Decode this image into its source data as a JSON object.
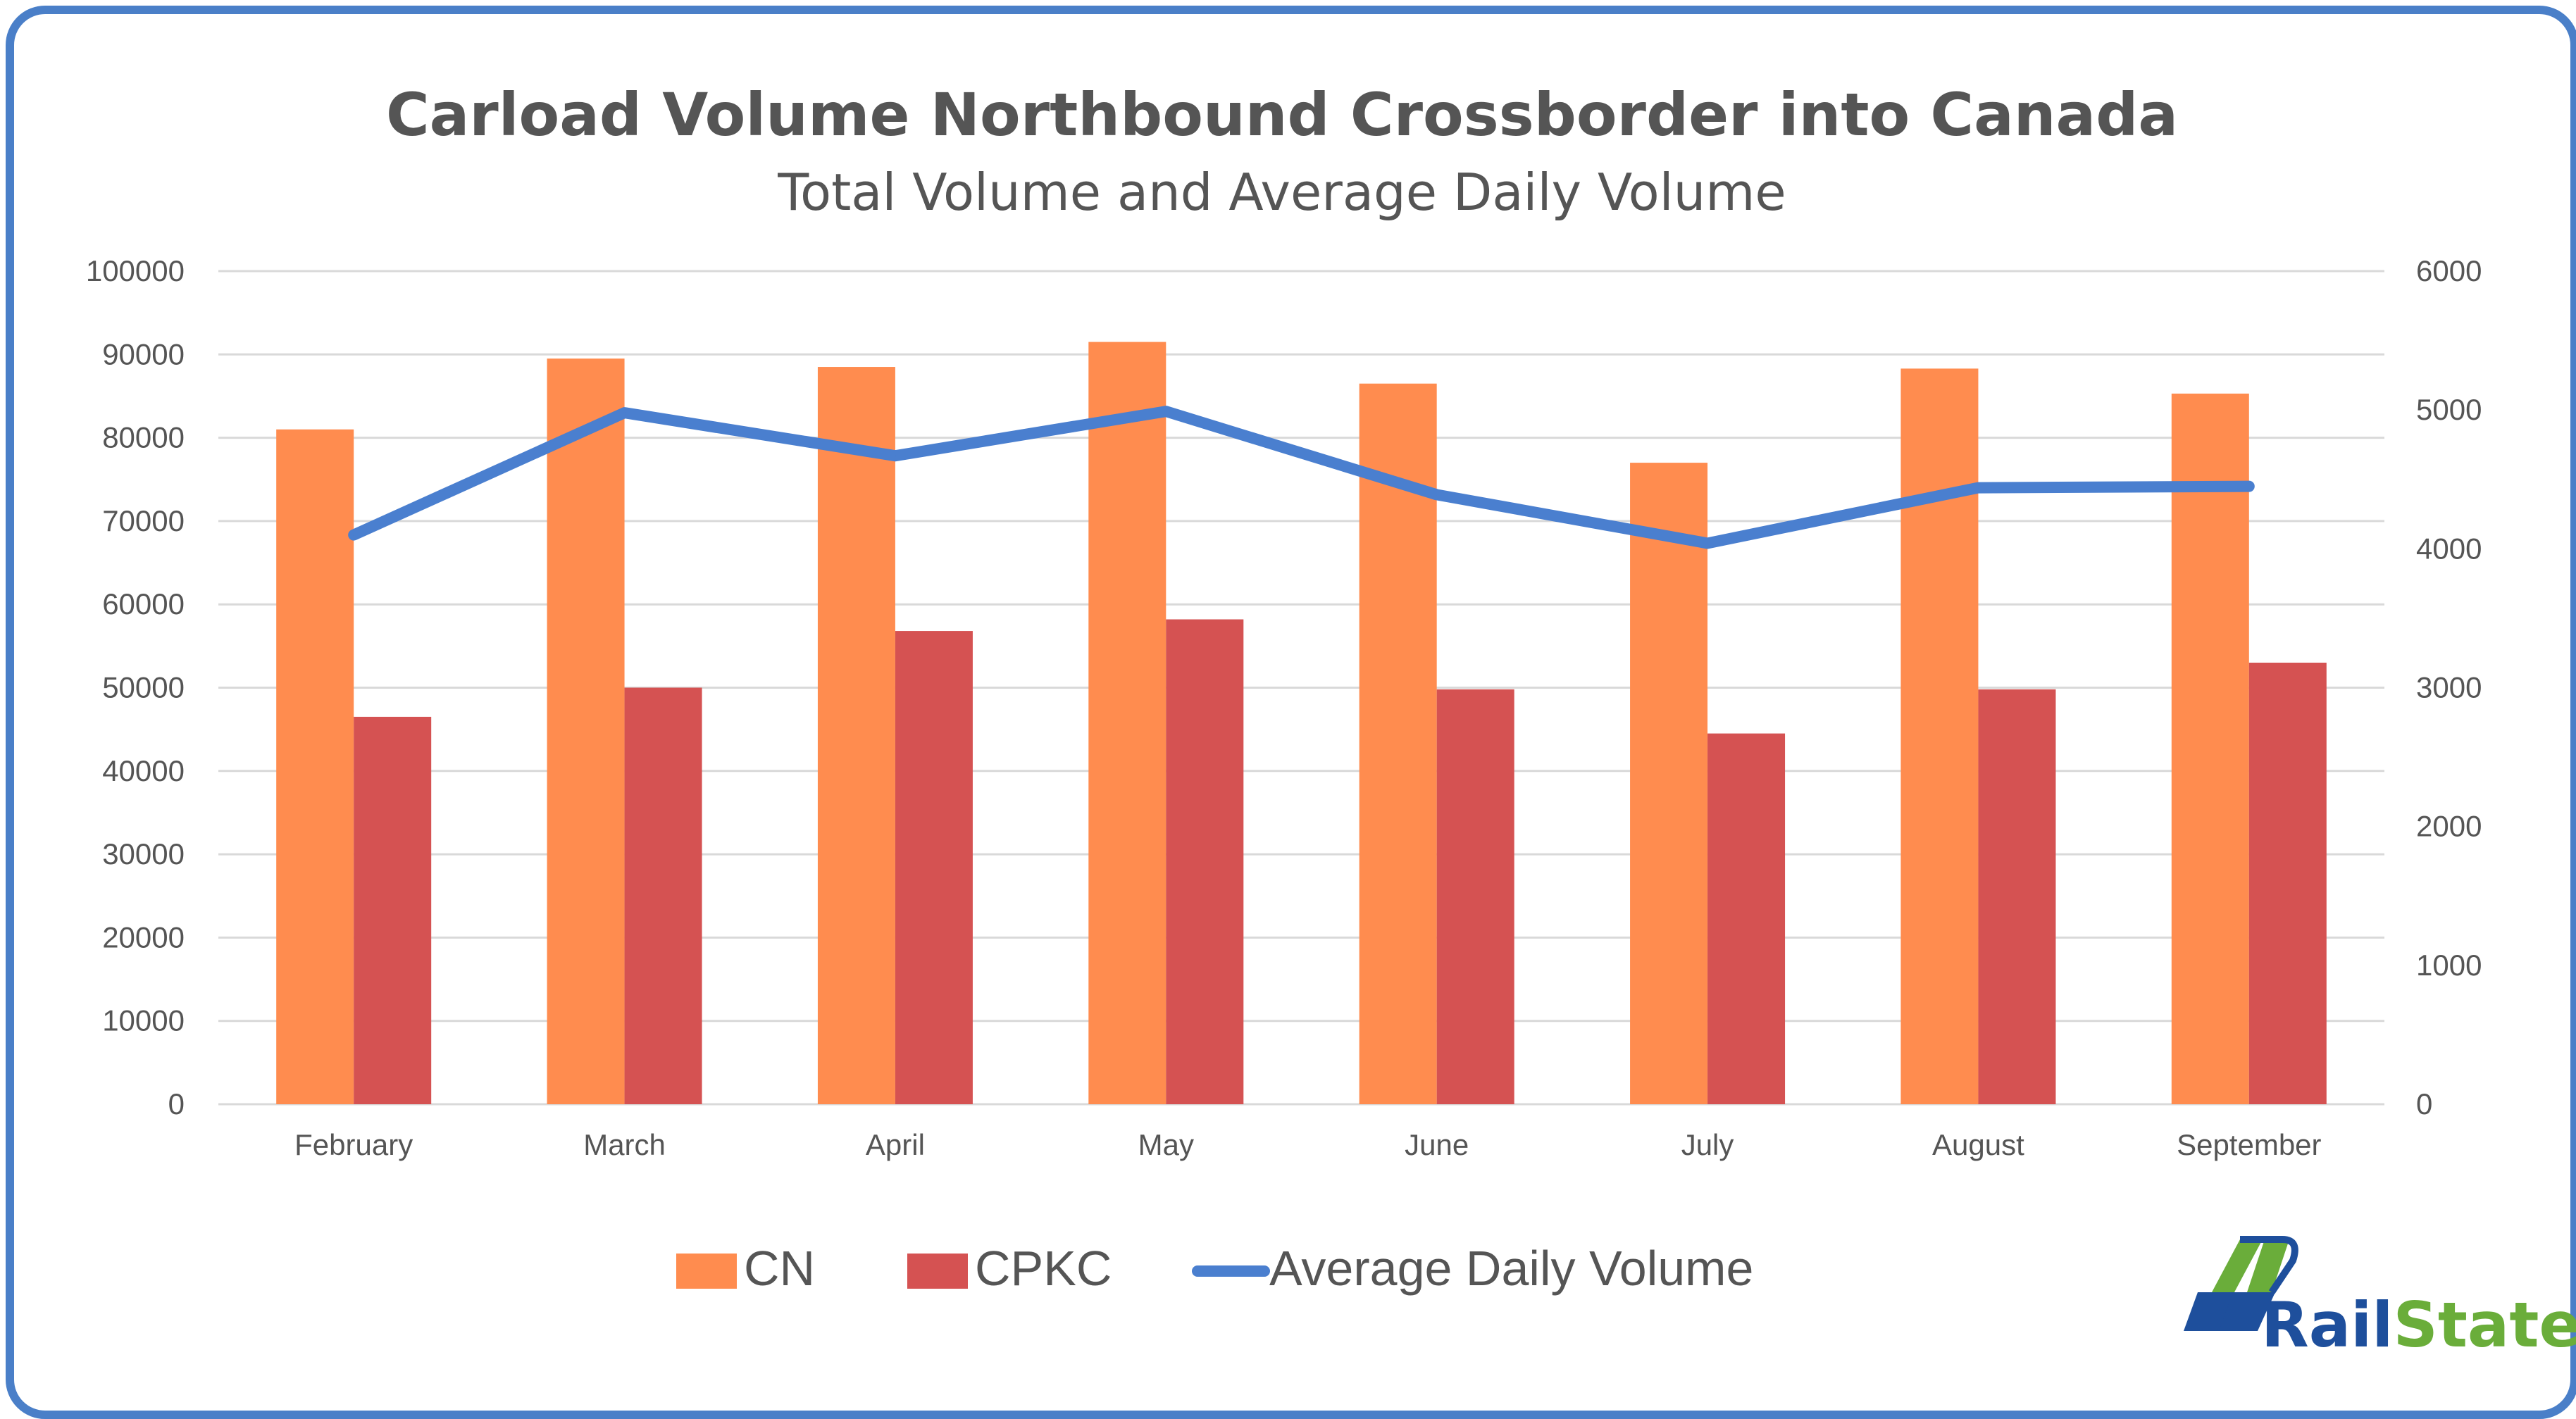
{
  "colors": {
    "cn": "#ff8c4f",
    "cpkc": "#d55252",
    "line": "#4a7fcf",
    "frame": "#4a7fc8",
    "grid": "#d9d9d9",
    "text": "#555555"
  },
  "chart_data": {
    "type": "bar",
    "title": "Carload Volume Northbound Crossborder into Canada",
    "subtitle": "Total Volume and Average Daily Volume",
    "categories": [
      "February",
      "March",
      "April",
      "May",
      "June",
      "July",
      "August",
      "September"
    ],
    "series": [
      {
        "name": "CN",
        "type": "bar",
        "axis": "left",
        "values": [
          81000,
          89500,
          88500,
          91500,
          86500,
          77000,
          88300,
          85300
        ]
      },
      {
        "name": "CPKC",
        "type": "bar",
        "axis": "left",
        "values": [
          46500,
          50000,
          56800,
          58200,
          49800,
          44500,
          49800,
          53000
        ]
      },
      {
        "name": "Average Daily Volume",
        "type": "line",
        "axis": "right",
        "values": [
          4100,
          4980,
          4670,
          4990,
          4390,
          4040,
          4440,
          4450
        ]
      }
    ],
    "ylim": [
      0,
      100000
    ],
    "y2lim": [
      0,
      6000
    ],
    "yticks": [
      "0",
      "10000",
      "20000",
      "30000",
      "40000",
      "50000",
      "60000",
      "70000",
      "80000",
      "90000",
      "100000"
    ],
    "y2ticks": [
      "0",
      "1000",
      "2000",
      "3000",
      "4000",
      "5000",
      "6000"
    ],
    "grid": true,
    "legend_position": "bottom"
  },
  "logo": {
    "part1": "Rail",
    "part2": "State"
  }
}
